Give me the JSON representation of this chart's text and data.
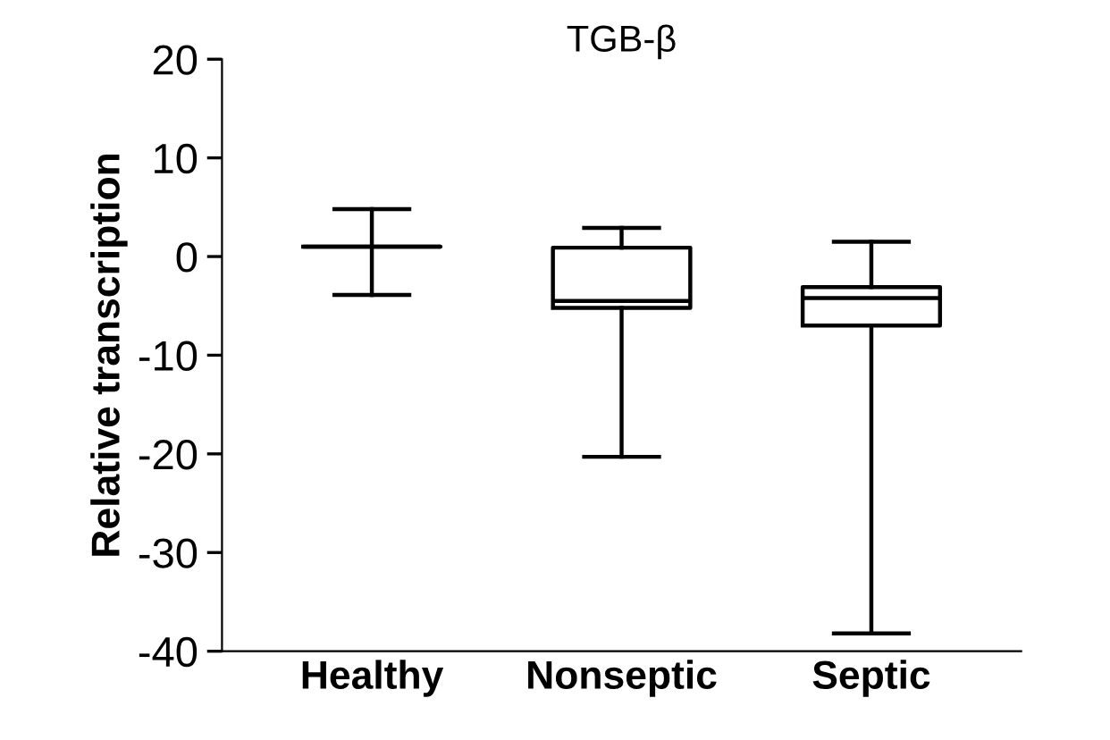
{
  "chart_data": {
    "type": "box",
    "title": "TGB-β",
    "ylabel": "Relative transcription",
    "categories": [
      "Healthy",
      "Nonseptic",
      "Septic"
    ],
    "boxes": [
      {
        "low": -3.9,
        "q1": 1.0,
        "median": 1.0,
        "q3": 1.0,
        "high": 4.8
      },
      {
        "low": -20.3,
        "q1": -5.2,
        "median": -4.5,
        "q3": 0.9,
        "high": 2.9
      },
      {
        "low": -38.2,
        "q1": -7.0,
        "median": -4.2,
        "q3": -3.1,
        "high": 1.5
      }
    ],
    "color": "#000000",
    "ylim": [
      -40,
      20
    ],
    "yticks": [
      -40,
      -30,
      -20,
      -10,
      0,
      10,
      20
    ],
    "grid": false
  }
}
